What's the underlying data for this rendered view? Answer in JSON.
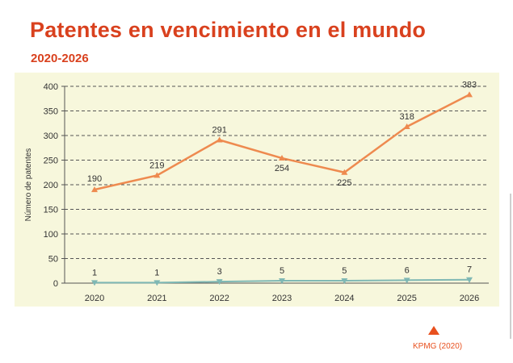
{
  "header": {
    "title": "Patentes en vencimiento en el mundo",
    "subtitle": "2020-2026"
  },
  "source": {
    "label": "KPMG (2020)",
    "icon": "triangle-up-icon"
  },
  "colors": {
    "accent": "#d9411e",
    "orange_series": "#ee8a4f",
    "teal_series": "#7fb8b4",
    "panel_bg": "#f7f7dc"
  },
  "chart_data": {
    "type": "line",
    "categories": [
      "2020",
      "2021",
      "2022",
      "2023",
      "2024",
      "2025",
      "2026"
    ],
    "ylabel": "Número de patentes",
    "xlabel": "",
    "ylim": [
      0,
      400
    ],
    "yticks": [
      0,
      50,
      100,
      150,
      200,
      250,
      300,
      350,
      400
    ],
    "grid": true,
    "series": [
      {
        "values": [
          190,
          219,
          291,
          254,
          225,
          318,
          383
        ],
        "labels": [
          "190",
          "219",
          "291",
          "254",
          "225",
          "318",
          "383"
        ]
      },
      {
        "values": [
          1,
          1,
          3,
          5,
          5,
          6,
          7
        ],
        "labels": [
          "1",
          "1",
          "3",
          "5",
          "5",
          "6",
          "7"
        ]
      }
    ]
  }
}
